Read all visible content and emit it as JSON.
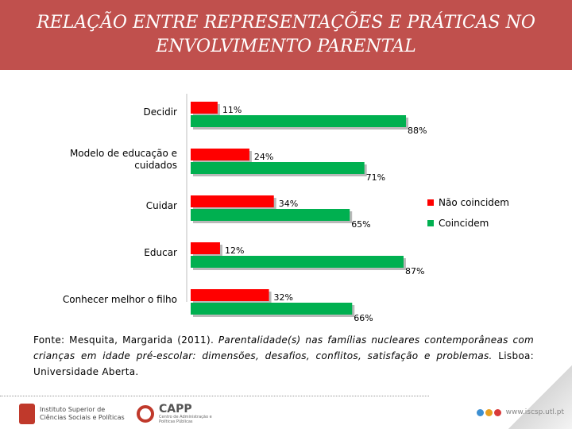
{
  "header": {
    "title": "RELAÇÃO ENTRE REPRESENTAÇÕES E PRÁTICAS NO ENVOLVIMENTO PARENTAL"
  },
  "colors": {
    "header_bg": "#c0504d",
    "series_red": "#ff0000",
    "series_green": "#00b050"
  },
  "chart_data": {
    "type": "bar",
    "orientation": "horizontal",
    "categories": [
      [
        "Decidir"
      ],
      [
        "Modelo de educação e",
        "cuidados"
      ],
      [
        "Cuidar"
      ],
      [
        "Educar"
      ],
      [
        "Conhecer melhor o filho"
      ]
    ],
    "series": [
      {
        "name": "Não coincidem",
        "color": "#ff0000",
        "values": [
          11,
          24,
          34,
          12,
          32
        ],
        "labels": [
          "11%",
          "24%",
          "34%",
          "12%",
          "32%"
        ]
      },
      {
        "name": "Coincidem",
        "color": "#00b050",
        "values": [
          88,
          71,
          65,
          87,
          66
        ],
        "labels": [
          "88%",
          "71%",
          "65%",
          "87%",
          "66%"
        ]
      }
    ],
    "xlim": [
      0,
      100
    ],
    "grid": false,
    "legend": "right"
  },
  "source": {
    "prefix": "Fonte: Mesquita, Margarida (2011). ",
    "title": "Parentalidade(s) nas famílias nucleares contemporâneas com crianças em idade pré-escolar: dimensões, desafios, conflitos, satisfação e problemas.",
    "suffix": " Lisboa: Universidade Aberta."
  },
  "footer": {
    "logo1_text": "Instituto Superior de Ciências Sociais e Políticas",
    "logo2_name": "CAPP",
    "logo2_sub": "Centro de Administração e Políticas Públicas",
    "site": "www.iscsp.utl.pt",
    "dot_colors": [
      "#3d8fd1",
      "#e8a020",
      "#d93a3a"
    ]
  }
}
